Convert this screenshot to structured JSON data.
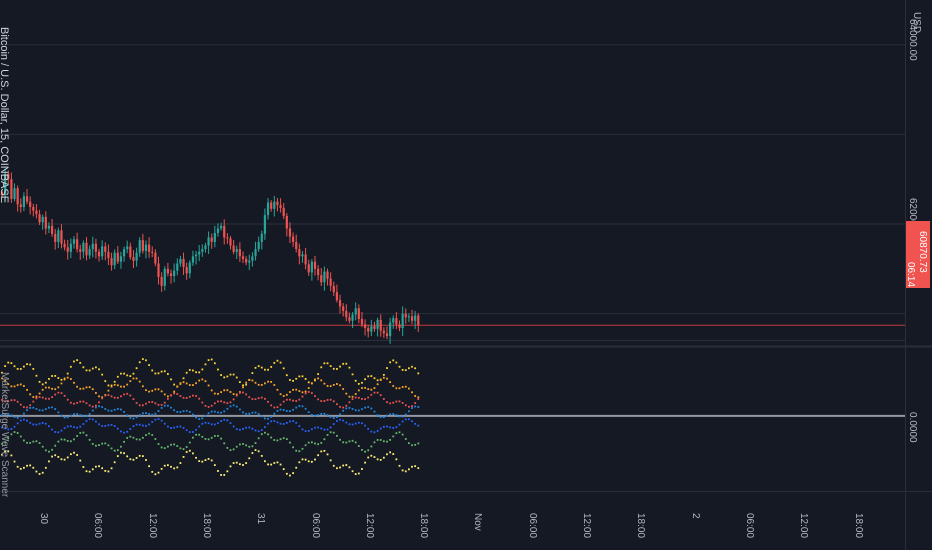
{
  "header": {
    "symbol_title": "Bitcoin / U.S. Dollar, 15, COINBASE",
    "currency": "USD"
  },
  "indicator": {
    "title": "MarketSurge Wave Scanner",
    "zero_label": "0.0000"
  },
  "colors": {
    "background": "#151924",
    "grid": "#2a2e39",
    "up": "#26a69a",
    "down": "#ef5350",
    "last_price_line": "#c2393c",
    "zero_line": "#9598a1",
    "dots": [
      "#fdd835",
      "#ffa726",
      "#ef5350",
      "#1e88e5",
      "#2962ff",
      "#66bb6a",
      "#fff176"
    ]
  },
  "chart_data": [
    {
      "type": "candlestick",
      "title": "Bitcoin / U.S. Dollar, 15, COINBASE",
      "ylim": [
        60650,
        64500
      ],
      "y_ticks": [
        {
          "value": 64000,
          "label": "64000.00"
        },
        {
          "value": 62000,
          "label": "62000.00"
        }
      ],
      "last_price": {
        "value": 60870.73,
        "label": "60870.73",
        "countdown": "06:14"
      },
      "x_ticks": [
        "30",
        "06:00",
        "12:00",
        "18:00",
        "31",
        "06:00",
        "12:00",
        "18:00",
        "Nov",
        "06:00",
        "12:00",
        "18:00",
        "2",
        "06:00",
        "12:00",
        "18:00"
      ],
      "closes": [
        62320,
        62560,
        62500,
        62280,
        62400,
        62220,
        62190,
        62310,
        62250,
        62190,
        62150,
        62110,
        62020,
        62080,
        61950,
        61980,
        61890,
        61800,
        61930,
        61780,
        61740,
        61690,
        61780,
        61830,
        61720,
        61690,
        61790,
        61650,
        61720,
        61780,
        61690,
        61640,
        61750,
        61690,
        61620,
        61540,
        61680,
        61580,
        61640,
        61720,
        61750,
        61630,
        61590,
        61680,
        61820,
        61700,
        61770,
        61690,
        61680,
        61560,
        61410,
        61310,
        61500,
        61450,
        61420,
        61480,
        61560,
        61610,
        61520,
        61450,
        61570,
        61640,
        61660,
        61690,
        61720,
        61760,
        61850,
        61800,
        61900,
        61950,
        61980,
        61850,
        61840,
        61760,
        61690,
        61720,
        61640,
        61610,
        61570,
        61590,
        61640,
        61720,
        61800,
        61890,
        62100,
        62240,
        62170,
        62250,
        62210,
        62180,
        62090,
        61950,
        61860,
        61800,
        61720,
        61640,
        61660,
        61550,
        61460,
        61580,
        61500,
        61430,
        61350,
        61470,
        61390,
        61310,
        61240,
        61150,
        61080,
        61030,
        60960,
        60920,
        60990,
        61060,
        60940,
        60880,
        60840,
        60800,
        60860,
        60830,
        60930,
        60810,
        60780,
        60750,
        60900,
        60950,
        60880,
        60840,
        61000,
        60960,
        60970,
        60920,
        60980,
        60870.73
      ]
    },
    {
      "type": "scatter",
      "title": "MarketSurge Wave Scanner",
      "zero_line": 0,
      "zero_label": "0.0000",
      "ylim": [
        -1.2,
        1.1
      ],
      "series": [
        {
          "color": "#fdd835",
          "base": 0.7,
          "amp": 0.14
        },
        {
          "color": "#ffa726",
          "base": 0.46,
          "amp": 0.1
        },
        {
          "color": "#ef5350",
          "base": 0.26,
          "amp": 0.08
        },
        {
          "color": "#1e88e5",
          "base": 0.06,
          "amp": 0.07
        },
        {
          "color": "#2962ff",
          "base": -0.16,
          "amp": 0.07
        },
        {
          "color": "#66bb6a",
          "base": -0.42,
          "amp": 0.1
        },
        {
          "color": "#fff176",
          "base": -0.76,
          "amp": 0.13
        }
      ]
    }
  ]
}
